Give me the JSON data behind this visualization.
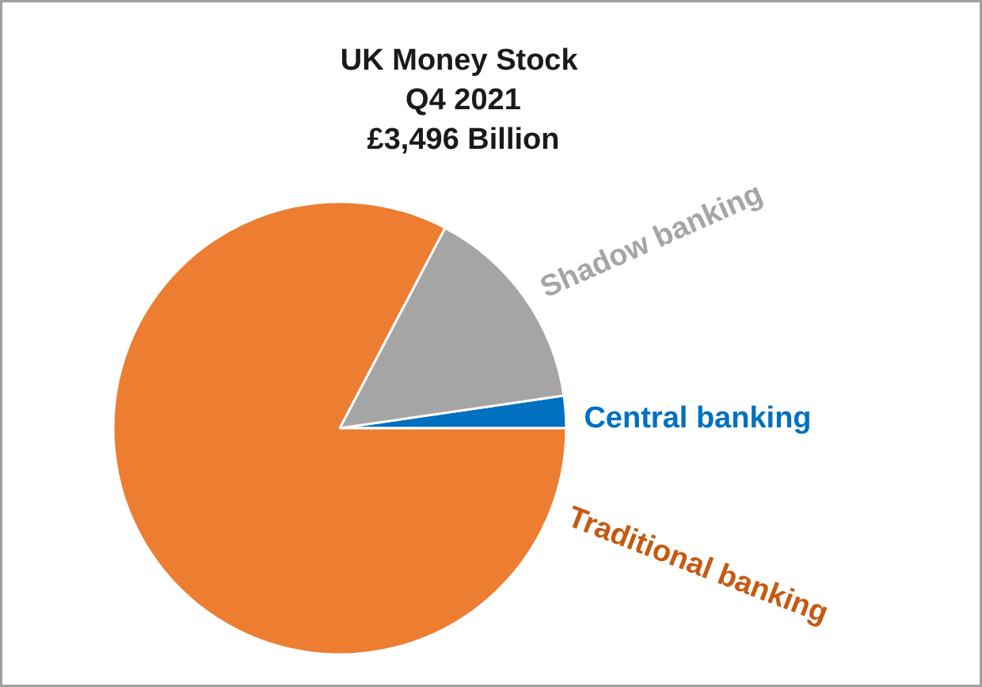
{
  "chart_data": {
    "type": "pie",
    "title": "UK Money  Stock\nQ4 2021\n£3,496 Billion",
    "categories": [
      "Central banking",
      "Shadow banking",
      "Traditional banking"
    ],
    "values": [
      2.3,
      15.0,
      82.7
    ],
    "colors": [
      "#0070c0",
      "#a5a5a5",
      "#ed7d31"
    ],
    "legend": false
  }
}
